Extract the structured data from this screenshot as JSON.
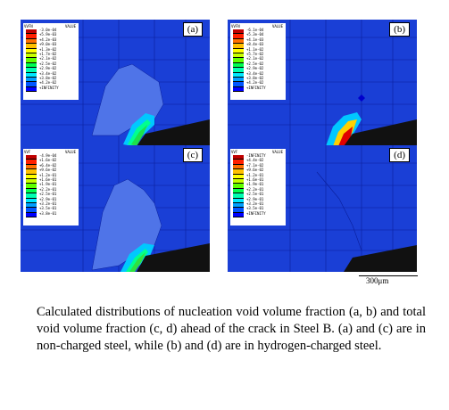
{
  "panels": [
    {
      "id": "a",
      "label": "(a)",
      "legend_title": "VVFN",
      "legend_value_header": "VALUE",
      "legend_values": [
        "-3.0e-04",
        "+5.9e-03",
        "+4.2e-03",
        "+9.0e-03",
        "+1.3e-02",
        "+1.7e-02",
        "+2.1e-02",
        "+2.5e-02",
        "+2.9e-02",
        "+3.4e-02",
        "+3.8e-02",
        "+4.2e-02",
        "+INFINITY"
      ]
    },
    {
      "id": "b",
      "label": "(b)",
      "legend_title": "VVFN",
      "legend_value_header": "VALUE",
      "legend_values": [
        "-6.1e-04",
        "+5.3e-04",
        "+4.1e-03",
        "+8.4e-03",
        "+1.1e-02",
        "+5.7e-02",
        "+2.1e-02",
        "+2.5e-02",
        "+2.9e-02",
        "+3.4e-02",
        "+3.8e-02",
        "+4.2e-02",
        "+INFINITY"
      ]
    },
    {
      "id": "c",
      "label": "(c)",
      "legend_title": "VVF",
      "legend_value_header": "VALUE",
      "legend_values": [
        "-4.9e-04",
        "+1.6e-02",
        "+6.4e-02",
        "+9.6e-02",
        "+1.2e-01",
        "+1.6e-01",
        "+1.9e-01",
        "+2.2e-01",
        "+2.5e-01",
        "+2.9e-01",
        "+3.2e-01",
        "+3.5e-01",
        "+3.8e-01"
      ]
    },
    {
      "id": "d",
      "label": "(d)",
      "legend_title": "VVF",
      "legend_value_header": "VALUE",
      "legend_values": [
        "-INFINITY",
        "+4.4e-02",
        "+7.1e-02",
        "+9.6e-02",
        "+1.2e-01",
        "+1.6e-01",
        "+1.9e-01",
        "+2.2e-01",
        "+2.5e-01",
        "+2.9e-01",
        "+3.2e-01",
        "+3.5e-01",
        "+INFINITY"
      ]
    }
  ],
  "legend_colors": [
    "#0000ff",
    "#0055ff",
    "#00a0ff",
    "#00e8ff",
    "#00ffb0",
    "#00ff50",
    "#60ff00",
    "#c8ff00",
    "#ffff00",
    "#ffc000",
    "#ff7000",
    "#ff2000",
    "#c00000"
  ],
  "scale_bar_label": "300μm",
  "caption": "Calculated distributions of nucleation void volume fraction (a, b) and total void volume fraction (c, d) ahead of the crack in Steel B. (a) and (c) are in non-charged steel, while (b) and (d) are in hydrogen-charged steel."
}
